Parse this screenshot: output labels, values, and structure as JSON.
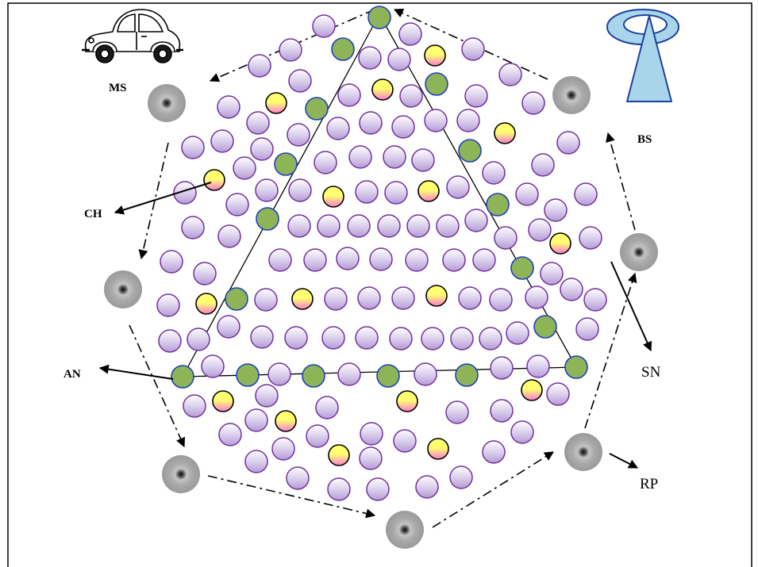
{
  "labels": {
    "mobile_sink": "MS",
    "base_station": "BS",
    "cluster_head": "CH",
    "anchor_node": "AN",
    "sensor_node": "SN",
    "rendezvous_point": "RP"
  },
  "icons": {
    "mobile_sink": "car-icon",
    "base_station": "antenna-icon"
  },
  "colors": {
    "sensor_node_fill": "#d8cbeb",
    "sensor_node_stroke": "#7030a0",
    "cluster_head_top": "#ffff70",
    "cluster_head_bottom": "#ff7ad2",
    "cluster_head_stroke": "#000000",
    "anchor_node_fill": "#8db456",
    "anchor_node_stroke": "#1f3fbf",
    "rendezvous_point": "#9a9a9a",
    "antenna_fill": "#a9d5ea",
    "antenna_stroke": "#1f3fa0"
  }
}
